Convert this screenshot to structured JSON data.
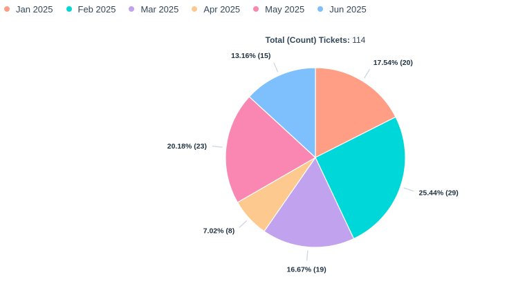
{
  "colors": {
    "Jan 2025": "#ff9d85",
    "Feb 2025": "#00d7d9",
    "Mar 2025": "#c1a2ee",
    "Apr 2025": "#fec98e",
    "May 2025": "#f987b1",
    "Jun 2025": "#7ebffd"
  },
  "summary": {
    "label": "Total (Count) Tickets:",
    "value": "114"
  },
  "chart_data": {
    "type": "pie",
    "title": "",
    "total": 114,
    "legend_position": "top-left",
    "slices": [
      {
        "name": "Jan 2025",
        "value": 20,
        "percent": 17.54,
        "label": "17.54% (20)"
      },
      {
        "name": "Feb 2025",
        "value": 29,
        "percent": 25.44,
        "label": "25.44% (29)"
      },
      {
        "name": "Mar 2025",
        "value": 19,
        "percent": 16.67,
        "label": "16.67% (19)"
      },
      {
        "name": "Apr 2025",
        "value": 8,
        "percent": 7.02,
        "label": "7.02% (8)"
      },
      {
        "name": "May 2025",
        "value": 23,
        "percent": 20.18,
        "label": "20.18% (23)"
      },
      {
        "name": "Jun 2025",
        "value": 15,
        "percent": 13.16,
        "label": "13.16% (15)"
      }
    ]
  }
}
